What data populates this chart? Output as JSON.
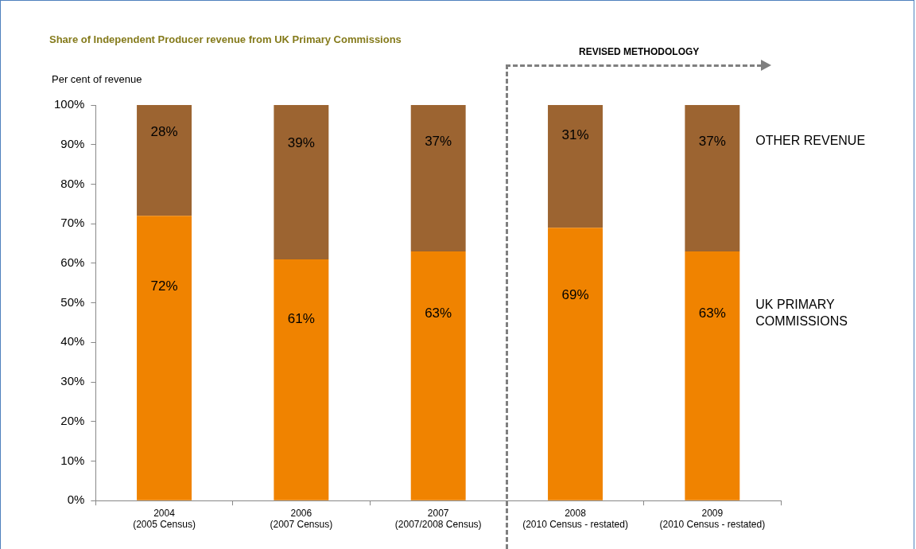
{
  "chart_data": {
    "type": "bar",
    "stacked": true,
    "title": "Share of Independent Producer revenue from UK Primary Commissions",
    "ylabel": "Per cent of revenue",
    "categories": [
      "2004\n(2005 Census)",
      "2006\n(2007 Census)",
      "2007\n(2007/2008 Census)",
      "2008\n(2010 Census - restated)",
      "2009\n(2010 Census - restated)"
    ],
    "series": [
      {
        "name": "UK PRIMARY COMMISSIONS",
        "color": "#f08300",
        "values": [
          72,
          61,
          63,
          69,
          63
        ],
        "value_labels": [
          "72%",
          "61%",
          "63%",
          "69%",
          "63%"
        ]
      },
      {
        "name": "OTHER REVENUE",
        "color": "#9c6431",
        "values": [
          28,
          39,
          37,
          31,
          37
        ],
        "value_labels": [
          "28%",
          "39%",
          "37%",
          "31%",
          "37%"
        ]
      }
    ],
    "ylim": [
      0,
      100
    ],
    "yticks": [
      {
        "value": 0,
        "label": "0%"
      },
      {
        "value": 10,
        "label": "10%"
      },
      {
        "value": 20,
        "label": "20%"
      },
      {
        "value": 30,
        "label": "30%"
      },
      {
        "value": 40,
        "label": "40%"
      },
      {
        "value": 50,
        "label": "50%"
      },
      {
        "value": 60,
        "label": "60%"
      },
      {
        "value": 70,
        "label": "70%"
      },
      {
        "value": 80,
        "label": "80%"
      },
      {
        "value": 90,
        "label": "90%"
      },
      {
        "value": 100,
        "label": "100%"
      }
    ],
    "annotations": [
      "REVISED METHODOLOGY"
    ],
    "grid": false,
    "legend": false
  }
}
